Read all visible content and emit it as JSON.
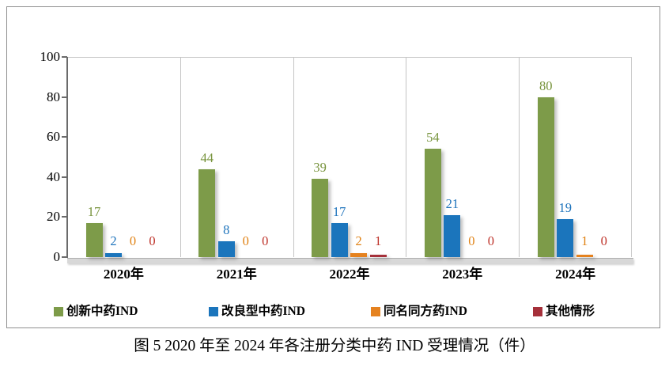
{
  "chart_data": {
    "type": "bar",
    "title": "图 5  2020 年至 2024 年各注册分类中药 IND 受理情况（件）",
    "categories": [
      "2020年",
      "2021年",
      "2022年",
      "2023年",
      "2024年"
    ],
    "series": [
      {
        "name": "创新中药IND",
        "color": "#7d9b49",
        "label_color": "#77933c",
        "values": [
          17,
          44,
          39,
          54,
          80
        ]
      },
      {
        "name": "改良型中药IND",
        "color": "#1b75bc",
        "label_color": "#1f74bc",
        "values": [
          2,
          8,
          17,
          21,
          19
        ]
      },
      {
        "name": "同名同方药IND",
        "color": "#e5821f",
        "label_color": "#e08214",
        "values": [
          0,
          0,
          2,
          0,
          1
        ]
      },
      {
        "name": "其他情形",
        "color": "#a5303a",
        "label_color": "#be3229",
        "values": [
          0,
          0,
          1,
          0,
          0
        ]
      }
    ],
    "ylim": [
      0,
      100
    ],
    "yticks": [
      0,
      20,
      40,
      60,
      80,
      100
    ],
    "xlabel": "",
    "ylabel": "",
    "grid": "vertical-group-separators",
    "legend_position": "bottom",
    "data_labels": true
  }
}
